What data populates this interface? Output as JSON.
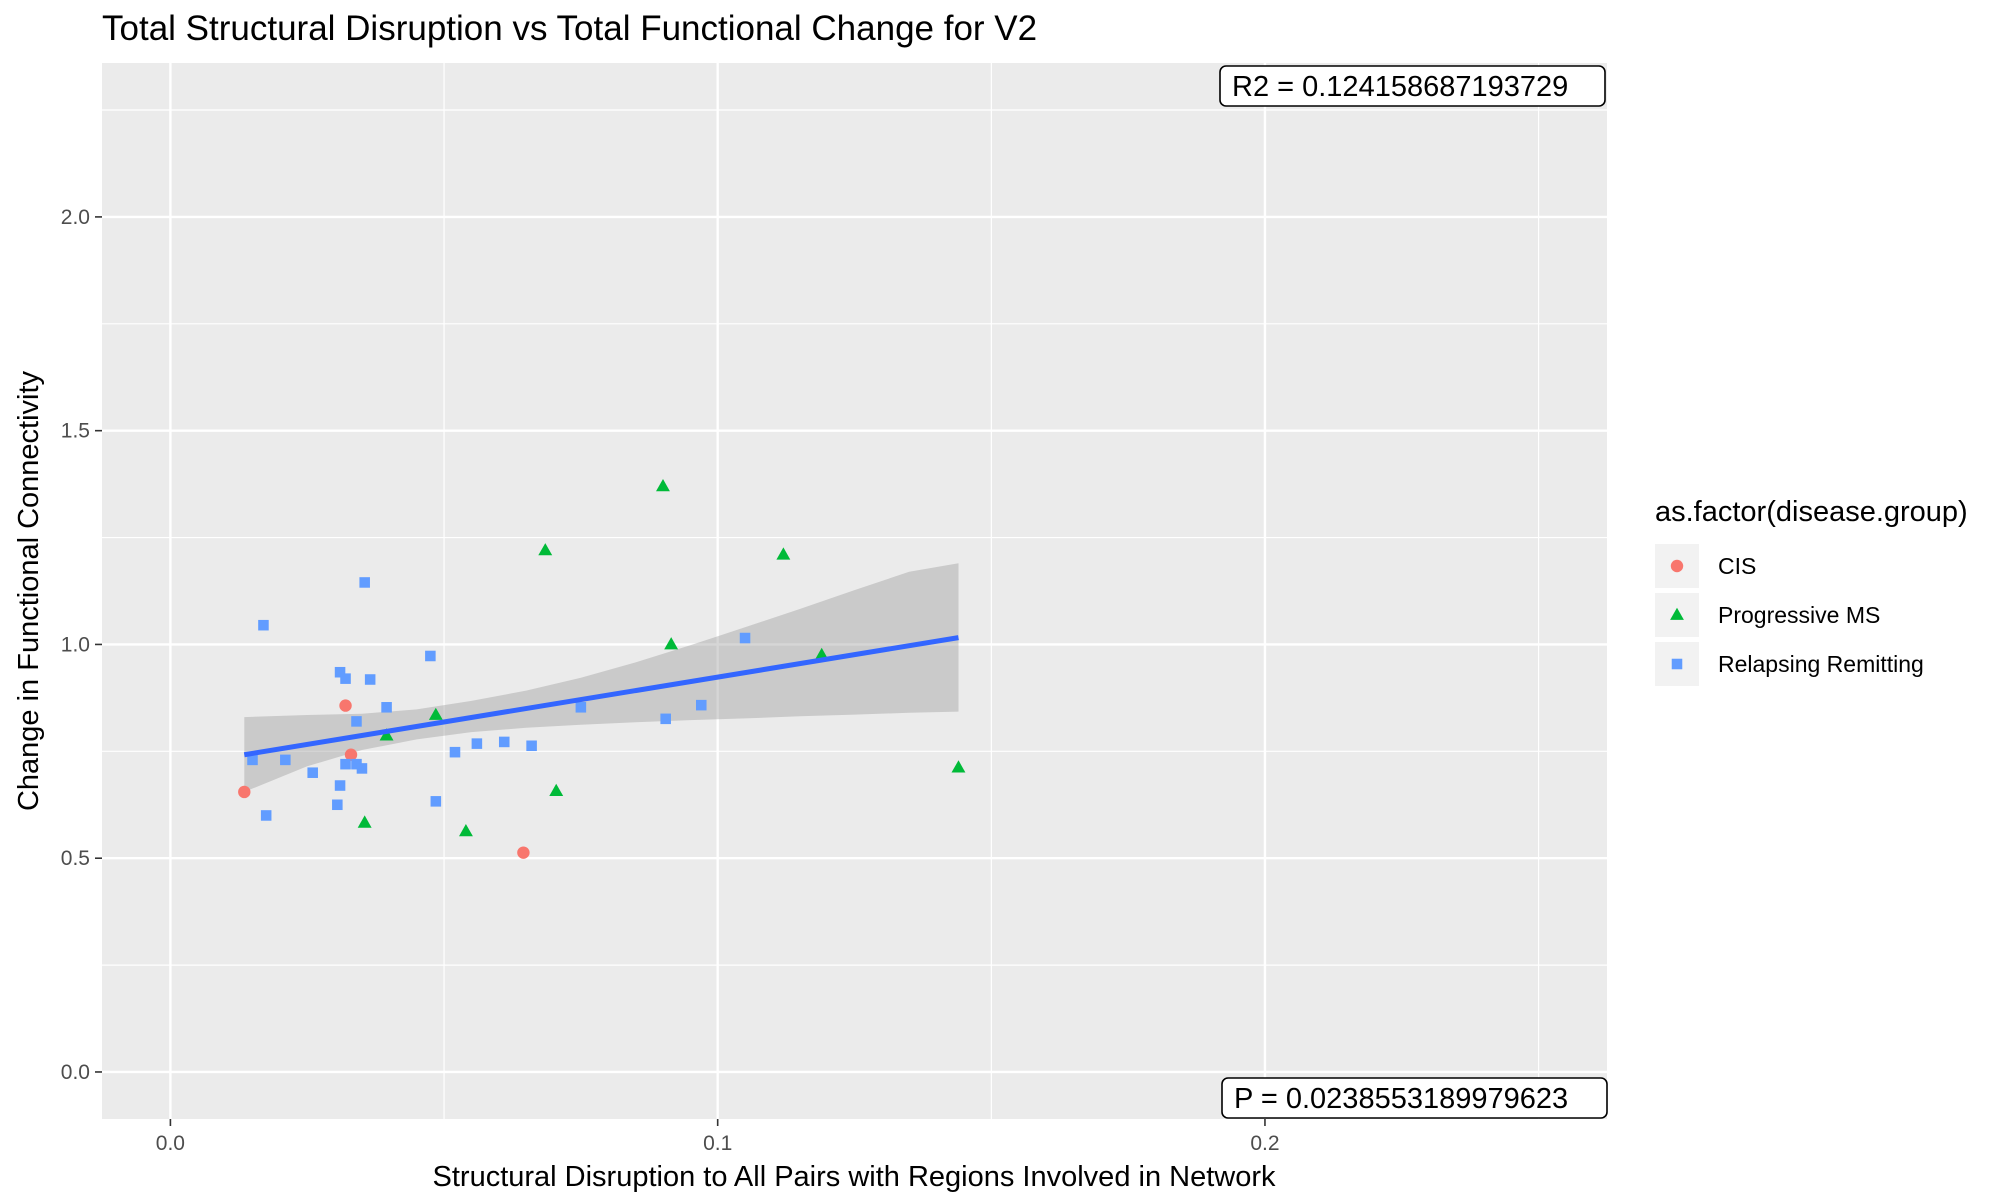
{
  "chart_data": {
    "type": "scatter",
    "title": "Total Structural Disruption vs Total Functional Change for V2",
    "xlabel": "Structural Disruption to All Pairs with Regions Involved in Network",
    "ylabel": "Change in Functional Connectivity",
    "xlim": [
      -0.0125,
      0.2625
    ],
    "ylim": [
      -0.11,
      2.36
    ],
    "x_ticks": [
      0.0,
      0.1,
      0.2
    ],
    "x_tick_labels": [
      "0.0",
      "0.1",
      "0.2"
    ],
    "y_ticks": [
      0.0,
      0.5,
      1.0,
      1.5,
      2.0
    ],
    "y_tick_labels": [
      "0.0",
      "0.5",
      "1.0",
      "1.5",
      "2.0"
    ],
    "grid": true,
    "legend": {
      "title": "as.factor(disease.group)",
      "position": "right"
    },
    "series": [
      {
        "name": "CIS",
        "color": "#F8766D",
        "marker": "circle",
        "points": [
          {
            "x": 0.0135,
            "y": 0.655
          },
          {
            "x": 0.032,
            "y": 0.857
          },
          {
            "x": 0.033,
            "y": 0.742
          },
          {
            "x": 0.0645,
            "y": 0.513
          }
        ]
      },
      {
        "name": "Progressive MS",
        "color": "#00BA38",
        "marker": "triangle",
        "points": [
          {
            "x": 0.0395,
            "y": 0.787
          },
          {
            "x": 0.0355,
            "y": 0.583
          },
          {
            "x": 0.0485,
            "y": 0.835
          },
          {
            "x": 0.054,
            "y": 0.563
          },
          {
            "x": 0.0685,
            "y": 1.22
          },
          {
            "x": 0.0705,
            "y": 0.657
          },
          {
            "x": 0.09,
            "y": 1.37
          },
          {
            "x": 0.0915,
            "y": 1.0
          },
          {
            "x": 0.112,
            "y": 1.21
          },
          {
            "x": 0.119,
            "y": 0.975
          },
          {
            "x": 0.144,
            "y": 0.712
          }
        ]
      },
      {
        "name": "Relapsing Remitting",
        "color": "#619CFF",
        "marker": "square",
        "points": [
          {
            "x": 0.015,
            "y": 0.73
          },
          {
            "x": 0.017,
            "y": 1.045
          },
          {
            "x": 0.0175,
            "y": 0.6
          },
          {
            "x": 0.021,
            "y": 0.73
          },
          {
            "x": 0.026,
            "y": 0.7
          },
          {
            "x": 0.0305,
            "y": 0.625
          },
          {
            "x": 0.031,
            "y": 0.935
          },
          {
            "x": 0.031,
            "y": 0.67
          },
          {
            "x": 0.032,
            "y": 0.92
          },
          {
            "x": 0.032,
            "y": 0.72
          },
          {
            "x": 0.034,
            "y": 0.72
          },
          {
            "x": 0.034,
            "y": 0.82
          },
          {
            "x": 0.035,
            "y": 0.71
          },
          {
            "x": 0.0355,
            "y": 1.145
          },
          {
            "x": 0.0365,
            "y": 0.918
          },
          {
            "x": 0.0395,
            "y": 0.853
          },
          {
            "x": 0.0475,
            "y": 0.973
          },
          {
            "x": 0.0485,
            "y": 0.633
          },
          {
            "x": 0.052,
            "y": 0.748
          },
          {
            "x": 0.056,
            "y": 0.768
          },
          {
            "x": 0.061,
            "y": 0.772
          },
          {
            "x": 0.066,
            "y": 0.763
          },
          {
            "x": 0.075,
            "y": 0.853
          },
          {
            "x": 0.0905,
            "y": 0.826
          },
          {
            "x": 0.097,
            "y": 0.858
          },
          {
            "x": 0.105,
            "y": 1.015
          }
        ]
      }
    ],
    "fit": {
      "type": "linear",
      "color": "#3366FF",
      "band_color": "#999999",
      "x_range": [
        0.0135,
        0.144
      ],
      "line": [
        {
          "x": 0.0135,
          "y": 0.742
        },
        {
          "x": 0.144,
          "y": 1.016
        }
      ],
      "band": [
        {
          "x": 0.0135,
          "lo": 0.655,
          "hi": 0.83
        },
        {
          "x": 0.025,
          "lo": 0.715,
          "hi": 0.835
        },
        {
          "x": 0.035,
          "lo": 0.753,
          "hi": 0.838
        },
        {
          "x": 0.045,
          "lo": 0.778,
          "hi": 0.848
        },
        {
          "x": 0.055,
          "lo": 0.795,
          "hi": 0.868
        },
        {
          "x": 0.065,
          "lo": 0.805,
          "hi": 0.892
        },
        {
          "x": 0.075,
          "lo": 0.812,
          "hi": 0.922
        },
        {
          "x": 0.085,
          "lo": 0.818,
          "hi": 0.958
        },
        {
          "x": 0.095,
          "lo": 0.823,
          "hi": 0.998
        },
        {
          "x": 0.105,
          "lo": 0.827,
          "hi": 1.04
        },
        {
          "x": 0.115,
          "lo": 0.832,
          "hi": 1.083
        },
        {
          "x": 0.125,
          "lo": 0.836,
          "hi": 1.127
        },
        {
          "x": 0.135,
          "lo": 0.84,
          "hi": 1.17
        },
        {
          "x": 0.144,
          "lo": 0.843,
          "hi": 1.19
        }
      ]
    },
    "annotations": [
      {
        "text": "R2 =  0.124158687193729",
        "position": "top-right"
      },
      {
        "text": "P =  0.0238553189979623",
        "position": "bottom-right"
      }
    ]
  }
}
